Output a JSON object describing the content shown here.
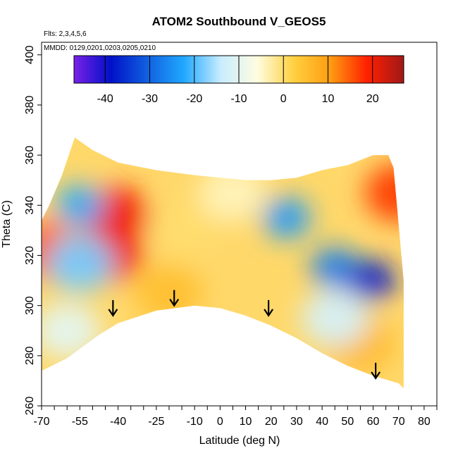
{
  "chart_data": {
    "type": "heatmap",
    "title": "ATOM2 Southbound V_GEOS5",
    "annotations": [
      "Flts: 2,3,4,5,6",
      "MMDD: 0129,0201,0203,0205,0210"
    ],
    "xlabel": "Latitude (deg N)",
    "ylabel": "Theta (C)",
    "xlim": [
      -70,
      85
    ],
    "ylim": [
      260,
      405
    ],
    "x_ticks": [
      -70,
      -55,
      -40,
      -25,
      -10,
      0,
      10,
      20,
      30,
      40,
      50,
      60,
      70,
      80
    ],
    "x_tick_labels": [
      "-70",
      "-55",
      "-40",
      "-25",
      "-10",
      "0",
      "10",
      "20",
      "30",
      "40",
      "50",
      "60",
      "70",
      "80"
    ],
    "y_ticks": [
      260,
      280,
      300,
      320,
      340,
      360,
      380,
      400
    ],
    "y_tick_labels": [
      "260",
      "280",
      "300",
      "320",
      "340",
      "360",
      "380",
      "400"
    ],
    "colorbar": {
      "range": [
        -47,
        27
      ],
      "ticks": [
        -40,
        -30,
        -20,
        -10,
        0,
        10,
        20
      ],
      "tick_labels": [
        "-40",
        "-30",
        "-20",
        "-10",
        "0",
        "10",
        "20"
      ],
      "colors": [
        "#7a20e8",
        "#0010c8",
        "#1060e0",
        "#20a8ff",
        "#c8ecff",
        "#fffde0",
        "#ffd040",
        "#ff9c10",
        "#ff2000",
        "#a01818"
      ]
    },
    "coverage_top": [
      [
        -70,
        334
      ],
      [
        -67,
        340
      ],
      [
        -62,
        352
      ],
      [
        -57,
        367
      ],
      [
        -50,
        362
      ],
      [
        -40,
        357
      ],
      [
        -25,
        354
      ],
      [
        -10,
        352
      ],
      [
        0,
        351
      ],
      [
        10,
        350
      ],
      [
        20,
        350
      ],
      [
        30,
        351
      ],
      [
        40,
        354
      ],
      [
        50,
        356
      ],
      [
        60,
        360
      ],
      [
        66,
        360
      ],
      [
        68,
        355
      ],
      [
        72,
        310
      ]
    ],
    "coverage_bottom": [
      [
        -70,
        274
      ],
      [
        -60,
        279
      ],
      [
        -48,
        288
      ],
      [
        -40,
        293
      ],
      [
        -25,
        298
      ],
      [
        -10,
        300
      ],
      [
        0,
        299
      ],
      [
        10,
        296
      ],
      [
        20,
        292
      ],
      [
        30,
        287
      ],
      [
        40,
        281
      ],
      [
        50,
        276
      ],
      [
        60,
        272
      ],
      [
        70,
        269
      ],
      [
        72,
        267
      ]
    ],
    "features": [
      {
        "name": "positive-max",
        "lat": -41,
        "theta": 336,
        "value": 20
      },
      {
        "name": "positive-max",
        "lat": -43,
        "theta": 321,
        "value": 20
      },
      {
        "name": "positive-max",
        "lat": -67,
        "theta": 322,
        "value": 15
      },
      {
        "name": "negative-min",
        "lat": -55,
        "theta": 340,
        "value": -22
      },
      {
        "name": "negative-min",
        "lat": -55,
        "theta": 317,
        "value": -18
      },
      {
        "name": "negative-min",
        "lat": 26,
        "theta": 335,
        "value": -24
      },
      {
        "name": "negative-min",
        "lat": 45,
        "theta": 315,
        "value": -27
      },
      {
        "name": "negative-min",
        "lat": 59,
        "theta": 310,
        "value": -38
      },
      {
        "name": "positive-max",
        "lat": 70,
        "theta": 345,
        "value": 17
      },
      {
        "name": "neutral",
        "lat": -15,
        "theta": 330,
        "value": 0
      },
      {
        "name": "neutral",
        "lat": 5,
        "theta": 345,
        "value": -4
      },
      {
        "name": "positive",
        "lat": -20,
        "theta": 305,
        "value": 5
      },
      {
        "name": "positive",
        "lat": 55,
        "theta": 285,
        "value": 6
      },
      {
        "name": "negative",
        "lat": -60,
        "theta": 290,
        "value": -10
      },
      {
        "name": "negative",
        "lat": 45,
        "theta": 295,
        "value": -12
      }
    ],
    "arrows": [
      {
        "lat": -42,
        "theta": 296
      },
      {
        "lat": -18,
        "theta": 300
      },
      {
        "lat": 19,
        "theta": 296
      },
      {
        "lat": 61,
        "theta": 271
      }
    ]
  }
}
